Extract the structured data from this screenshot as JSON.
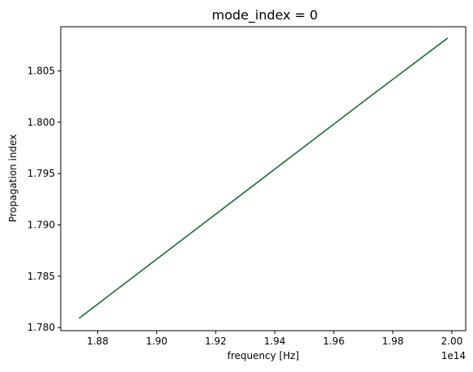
{
  "chart_data": {
    "type": "line",
    "title": "mode_index = 0",
    "xlabel": "frequency [Hz]",
    "ylabel": "Propagation index",
    "x_offset_label": "1e14",
    "xlim": [
      1.8675,
      2.0047
    ],
    "ylim": [
      1.7797,
      1.8093
    ],
    "x_ticks": [
      1.88,
      1.9,
      1.92,
      1.94,
      1.96,
      1.98,
      2.0
    ],
    "x_tick_labels": [
      "1.88",
      "1.90",
      "1.92",
      "1.94",
      "1.96",
      "1.98",
      "2.00"
    ],
    "y_ticks": [
      1.78,
      1.785,
      1.79,
      1.795,
      1.8,
      1.805
    ],
    "y_tick_labels": [
      "1.780",
      "1.785",
      "1.790",
      "1.795",
      "1.800",
      "1.805"
    ],
    "grid": false,
    "series": [
      {
        "color": "#1f6b35",
        "x": [
          1.8737,
          1.8988,
          1.9239,
          1.949,
          1.9741,
          1.9986
        ],
        "y": [
          1.7809,
          1.7864,
          1.7919,
          1.7974,
          1.8029,
          1.8082
        ]
      }
    ]
  }
}
